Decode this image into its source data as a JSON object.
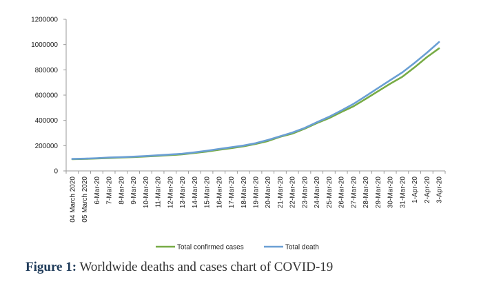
{
  "chart_data": {
    "type": "line",
    "categories": [
      "04 March 2020",
      "05 March 2020",
      "6-Mar-20",
      "7-Mar-20",
      "8-Mar-20",
      "9-Mar-20",
      "10-Mar-20",
      "11-Mar-20",
      "12-Mar-20",
      "13-Mar-20",
      "14-Mar-20",
      "15-Mar-20",
      "16-Mar-20",
      "17-Mar-20",
      "18-Mar-20",
      "19-Mar-20",
      "20-Mar-20",
      "21-Mar-20",
      "22-Mar-20",
      "23-Mar-20",
      "24-Mar-20",
      "25-Mar-20",
      "26-Mar-20",
      "27-Mar-20",
      "28-Mar-20",
      "29-Mar-20",
      "30-Mar-20",
      "31-Mar-20",
      "1-Apr-20",
      "2-Apr-20",
      "3-Apr-20"
    ],
    "series": [
      {
        "name": "Total confirmed cases",
        "color": "#77ab45",
        "values": [
          93000,
          95000,
          98000,
          102000,
          106000,
          109000,
          114000,
          119000,
          125000,
          131000,
          142000,
          153000,
          167000,
          180000,
          195000,
          213000,
          236000,
          270000,
          295000,
          334000,
          378000,
          418000,
          466000,
          511000,
          570000,
          630000,
          690000,
          745000,
          820000,
          900000,
          970000
        ]
      },
      {
        "name": "Total death",
        "color": "#6a9fd4",
        "values": [
          95000,
          97000,
          101000,
          106000,
          109000,
          113000,
          118000,
          124000,
          130000,
          136000,
          147000,
          159000,
          174000,
          187000,
          201000,
          219000,
          245000,
          274000,
          303000,
          340000,
          385000,
          428000,
          478000,
          530000,
          592000,
          655000,
          718000,
          780000,
          855000,
          935000,
          1020000
        ]
      }
    ],
    "y_ticks": [
      "0",
      "200000",
      "400000",
      "600000",
      "800000",
      "1000000",
      "1200000"
    ],
    "ylim": [
      0,
      1200000
    ],
    "legend_position": "bottom",
    "grid": false,
    "title": "",
    "xlabel": "",
    "ylabel": ""
  },
  "caption": {
    "label": "Figure 1:",
    "text": " Worldwide deaths and cases chart of COVID-19"
  }
}
